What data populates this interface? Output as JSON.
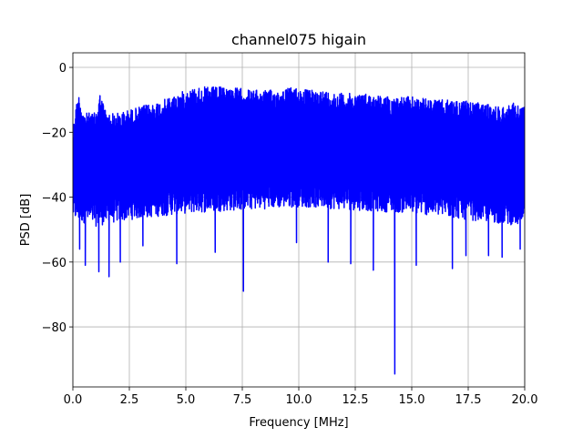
{
  "chart_data": {
    "type": "line",
    "title": "channel075 higain",
    "xlabel": "Frequency [MHz]",
    "ylabel": "PSD [dB]",
    "xlim": [
      0,
      20
    ],
    "ylim": [
      -98.5,
      4.5
    ],
    "xticks": [
      0.0,
      2.5,
      5.0,
      7.5,
      10.0,
      12.5,
      15.0,
      17.5,
      20.0
    ],
    "xtick_labels": [
      "0.0",
      "2.5",
      "5.0",
      "7.5",
      "10.0",
      "12.5",
      "15.0",
      "17.5",
      "20.0"
    ],
    "yticks": [
      0,
      -20,
      -40,
      -60,
      -80
    ],
    "ytick_labels": [
      "0",
      "−20",
      "−40",
      "−60",
      "−80"
    ],
    "grid": true,
    "series": [
      {
        "color": "#0000ff",
        "upper_envelope": {
          "x": [
            0.0,
            0.1,
            0.25,
            0.5,
            1.0,
            1.2,
            1.5,
            2.0,
            2.5,
            3.0,
            4.0,
            5.0,
            5.5,
            6.0,
            7.0,
            8.0,
            9.0,
            9.8,
            10.5,
            11.0,
            12.0,
            13.0,
            14.0,
            15.0,
            16.0,
            17.0,
            18.0,
            19.0,
            19.5,
            20.0
          ],
          "y": [
            -20,
            -13,
            -8,
            -14,
            -14,
            -8,
            -14,
            -14,
            -13,
            -12,
            -10,
            -7,
            -6,
            -6,
            -6,
            -7,
            -7,
            -6,
            -7,
            -7,
            -8,
            -8,
            -9,
            -9,
            -10,
            -10,
            -11,
            -12,
            -11,
            -12
          ]
        },
        "lower_envelope": {
          "x": [
            0.0,
            1.0,
            2.5,
            5.0,
            7.5,
            10.0,
            12.5,
            15.0,
            17.5,
            20.0
          ],
          "y": [
            -44,
            -46,
            -44,
            -42,
            -41,
            -40,
            -41,
            -42,
            -44,
            -46
          ]
        },
        "notable_dips": [
          {
            "x": 0.3,
            "y": -56
          },
          {
            "x": 0.55,
            "y": -61
          },
          {
            "x": 1.15,
            "y": -63
          },
          {
            "x": 1.6,
            "y": -64.5
          },
          {
            "x": 2.1,
            "y": -60
          },
          {
            "x": 3.1,
            "y": -55
          },
          {
            "x": 4.6,
            "y": -60.5
          },
          {
            "x": 6.3,
            "y": -57
          },
          {
            "x": 7.55,
            "y": -69
          },
          {
            "x": 9.9,
            "y": -54
          },
          {
            "x": 11.3,
            "y": -60
          },
          {
            "x": 12.3,
            "y": -60.5
          },
          {
            "x": 13.3,
            "y": -62.5
          },
          {
            "x": 14.25,
            "y": -94.5
          },
          {
            "x": 15.2,
            "y": -61
          },
          {
            "x": 16.8,
            "y": -62
          },
          {
            "x": 17.4,
            "y": -58
          },
          {
            "x": 18.4,
            "y": -58
          },
          {
            "x": 19.0,
            "y": -58.5
          },
          {
            "x": 19.8,
            "y": -56
          }
        ]
      }
    ]
  }
}
